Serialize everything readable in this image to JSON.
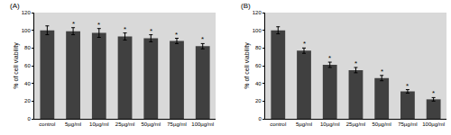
{
  "chart_data": [
    {
      "type": "bar",
      "title": "(A)",
      "y_label": "% of cell viability",
      "categories": [
        "control",
        "5µg/ml",
        "10µg/ml",
        "25µg/ml",
        "50µg/ml",
        "75µg/ml",
        "100µg/ml"
      ],
      "values": [
        100,
        99,
        97,
        93,
        91,
        88,
        82
      ],
      "errors": [
        5,
        4,
        5,
        4,
        4,
        3,
        3
      ],
      "significance": [
        null,
        "*",
        "*",
        "*",
        "*",
        "*",
        "*"
      ],
      "color": "#404040",
      "ylim": [
        0,
        120
      ],
      "yticks": [
        0,
        20,
        40,
        60,
        80,
        100,
        120
      ],
      "grid": false
    },
    {
      "type": "bar",
      "title": "(B)",
      "y_label": "% of cell viability",
      "categories": [
        "control",
        "5µg/ml",
        "10µg/ml",
        "25µg/ml",
        "50µg/ml",
        "75µg/ml",
        "100µg/ml"
      ],
      "values": [
        100,
        77,
        61,
        55,
        46,
        31,
        22
      ],
      "errors": [
        4,
        3,
        3,
        3,
        3,
        2,
        2
      ],
      "significance": [
        null,
        "*",
        "*",
        "*",
        "*",
        "*",
        "*"
      ],
      "color": "#404040",
      "ylim": [
        0,
        120
      ],
      "yticks": [
        0,
        20,
        40,
        60,
        80,
        100,
        120
      ],
      "grid": false
    }
  ]
}
